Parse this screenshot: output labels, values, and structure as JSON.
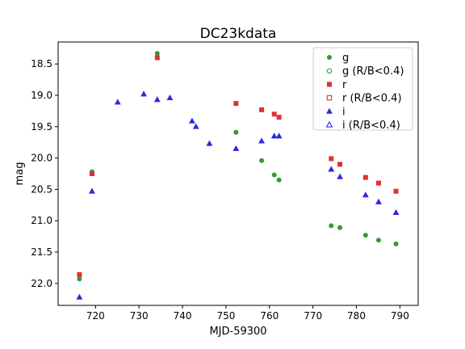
{
  "chart_data": {
    "type": "scatter",
    "title": "DC23kdata",
    "xlabel": "MJD-59300",
    "ylabel": "mag",
    "xlim": [
      711.4,
      794.2
    ],
    "ylim": [
      22.35,
      18.15
    ],
    "y_inverted": true,
    "xticks": [
      720,
      730,
      740,
      750,
      760,
      770,
      780,
      790
    ],
    "yticks": [
      18.5,
      19.0,
      19.5,
      20.0,
      20.5,
      21.0,
      21.5,
      22.0
    ],
    "xtick_labels": [
      "720",
      "730",
      "740",
      "750",
      "760",
      "770",
      "780",
      "790"
    ],
    "ytick_labels": [
      "18.5",
      "19.0",
      "19.5",
      "20.0",
      "20.5",
      "21.0",
      "21.5",
      "22.0"
    ],
    "grid": false,
    "legend_position": "top-right",
    "series": [
      {
        "name": "g",
        "marker": "circle-filled",
        "color": "#2ca02c",
        "points": [
          [
            716.3,
            21.93
          ],
          [
            719.2,
            20.22
          ],
          [
            734.2,
            18.33
          ],
          [
            752.3,
            19.59
          ],
          [
            758.2,
            20.04
          ],
          [
            761.1,
            20.27
          ],
          [
            762.2,
            20.35
          ],
          [
            774.2,
            21.08
          ],
          [
            776.2,
            21.11
          ],
          [
            782.1,
            21.23
          ],
          [
            785.1,
            21.31
          ],
          [
            789.1,
            21.37
          ]
        ]
      },
      {
        "name": "g (R/B<0.4)",
        "marker": "circle-open",
        "color": "#2ca02c",
        "points": []
      },
      {
        "name": "r",
        "marker": "square-filled",
        "color": "#e03030",
        "points": [
          [
            716.3,
            21.86
          ],
          [
            719.2,
            20.25
          ],
          [
            734.2,
            18.4
          ],
          [
            752.3,
            19.13
          ],
          [
            758.2,
            19.23
          ],
          [
            761.1,
            19.3
          ],
          [
            762.2,
            19.35
          ],
          [
            774.2,
            20.01
          ],
          [
            776.2,
            20.1
          ],
          [
            782.1,
            20.31
          ],
          [
            785.1,
            20.4
          ],
          [
            789.1,
            20.53
          ]
        ]
      },
      {
        "name": "r (R/B<0.4)",
        "marker": "square-open",
        "color": "#e03030",
        "points": []
      },
      {
        "name": "i",
        "marker": "triangle-filled",
        "color": "#2a2ae0",
        "points": [
          [
            716.3,
            22.22
          ],
          [
            719.2,
            20.53
          ],
          [
            725.1,
            19.11
          ],
          [
            731.1,
            18.98
          ],
          [
            734.2,
            19.07
          ],
          [
            737.1,
            19.04
          ],
          [
            742.2,
            19.41
          ],
          [
            743.1,
            19.5
          ],
          [
            746.2,
            19.77
          ],
          [
            752.3,
            19.85
          ],
          [
            758.2,
            19.73
          ],
          [
            761.1,
            19.65
          ],
          [
            762.2,
            19.65
          ],
          [
            774.2,
            20.18
          ],
          [
            776.2,
            20.3
          ],
          [
            782.1,
            20.59
          ],
          [
            785.1,
            20.7
          ],
          [
            789.1,
            20.87
          ]
        ]
      },
      {
        "name": "i (R/B<0.4)",
        "marker": "triangle-open",
        "color": "#2a2ae0",
        "points": []
      }
    ]
  }
}
